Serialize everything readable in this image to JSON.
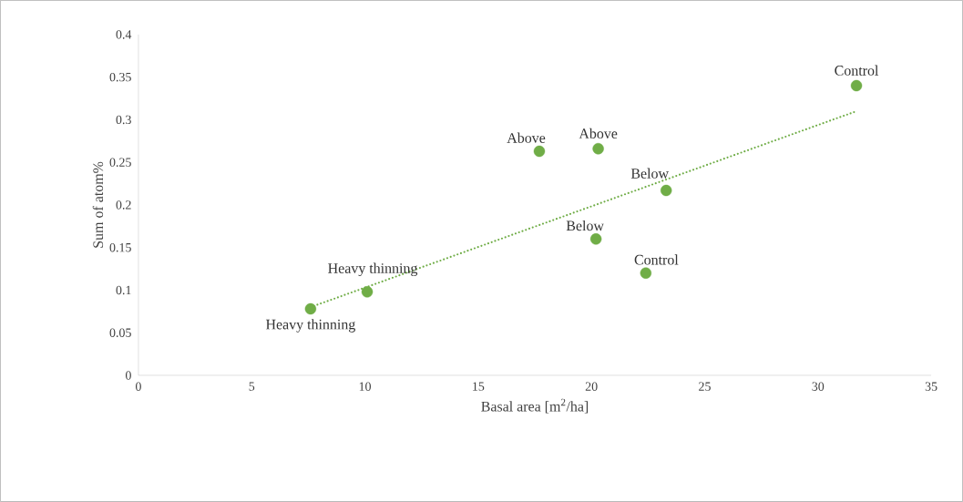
{
  "chart_data": {
    "type": "scatter",
    "xlabel": "Basal area [m$^{2}$/ha]",
    "ylabel": "Sum of atom%",
    "xlim": [
      0,
      35
    ],
    "ylim": [
      0,
      0.4
    ],
    "xticks": [
      0,
      5,
      10,
      15,
      20,
      25,
      30,
      35
    ],
    "yticks": [
      0,
      0.05,
      0.1,
      0.15,
      0.2,
      0.25,
      0.3,
      0.35,
      0.4
    ],
    "grid": false,
    "series": [
      {
        "color": "#70ad47",
        "marker": "circle",
        "x": [
          7.6,
          10.1,
          17.7,
          20.3,
          20.2,
          22.4,
          23.3,
          31.7
        ],
        "values": [
          0.078,
          0.098,
          0.263,
          0.266,
          0.16,
          0.12,
          0.217,
          0.34
        ]
      },
      {
        "type": "line",
        "color": "#70ad47",
        "line_style": "dotted",
        "marker": "none",
        "x": [
          7.6,
          31.7
        ],
        "values": [
          0.08,
          0.31
        ]
      }
    ],
    "annotations": [
      {
        "text": "Heavy thinning",
        "x": 7.6,
        "y": 0.078
      },
      {
        "text": "Heavy thinning",
        "x": 10.1,
        "y": 0.098
      },
      {
        "text": "Above",
        "x": 17.7,
        "y": 0.263
      },
      {
        "text": "Above",
        "x": 20.3,
        "y": 0.266
      },
      {
        "text": "Below",
        "x": 20.2,
        "y": 0.16
      },
      {
        "text": "Control",
        "x": 22.4,
        "y": 0.12
      },
      {
        "text": "Below",
        "x": 23.3,
        "y": 0.217
      },
      {
        "text": "Control",
        "x": 31.7,
        "y": 0.34
      }
    ]
  }
}
